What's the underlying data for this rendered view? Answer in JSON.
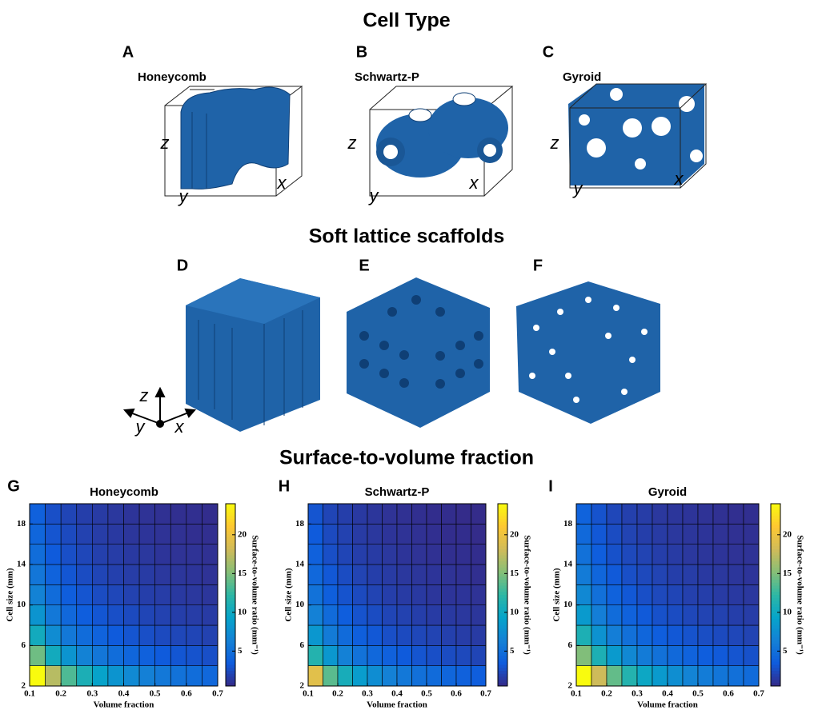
{
  "figure": {
    "title_top": "Cell Type",
    "title_mid": "Soft lattice scaffolds",
    "title_bottom": "Surface-to-volume fraction",
    "cells": [
      {
        "letter": "A",
        "name": "Honeycomb",
        "z": "z",
        "y": "y",
        "x": "x"
      },
      {
        "letter": "B",
        "name": "Schwartz-P",
        "z": "z",
        "y": "y",
        "x": "x"
      },
      {
        "letter": "C",
        "name": "Gyroid",
        "z": "z",
        "y": "y",
        "x": "x"
      }
    ],
    "scaffolds": [
      "D",
      "E",
      "F"
    ],
    "triad": {
      "z": "z",
      "y": "y",
      "x": "x"
    }
  },
  "chart_data": [
    {
      "type": "heatmap",
      "panel": "G",
      "title": "Honeycomb",
      "xlabel": "Volume fraction",
      "ylabel": "Cell size (mm)",
      "colorbar_label": "Surface-to-volume ratio (mm⁻¹)",
      "x": [
        0.125,
        0.175,
        0.225,
        0.275,
        0.325,
        0.375,
        0.425,
        0.475,
        0.525,
        0.575,
        0.625,
        0.675
      ],
      "y": [
        3,
        5,
        7,
        9,
        11,
        13,
        15,
        17,
        19
      ],
      "z": [
        [
          24,
          17.1,
          13.3,
          10.9,
          9.2,
          8,
          7.1,
          6.3,
          5.7,
          5.2,
          4.8,
          4.4
        ],
        [
          14.4,
          10.3,
          8,
          6.5,
          5.5,
          4.8,
          4.2,
          3.8,
          3.4,
          3.1,
          2.9,
          2.7
        ],
        [
          10.3,
          7.3,
          5.7,
          4.7,
          4,
          3.4,
          3,
          2.7,
          2.4,
          2.2,
          2.1,
          1.9
        ],
        [
          8,
          5.7,
          4.4,
          3.6,
          3.1,
          2.7,
          2.4,
          2.1,
          1.9,
          1.7,
          1.6,
          1.5
        ],
        [
          6.5,
          4.7,
          3.6,
          3,
          2.5,
          2.2,
          1.9,
          1.7,
          1.6,
          1.4,
          1.3,
          1.2
        ],
        [
          5.5,
          4,
          3.1,
          2.5,
          2.1,
          1.8,
          1.6,
          1.5,
          1.3,
          1.2,
          1.1,
          1
        ],
        [
          4.8,
          3.4,
          2.7,
          2.2,
          1.8,
          1.6,
          1.4,
          1.3,
          1.1,
          1,
          1,
          0.9
        ],
        [
          4.2,
          3,
          2.4,
          1.9,
          1.6,
          1.4,
          1.2,
          1.1,
          1,
          0.9,
          0.8,
          0.8
        ],
        [
          3.8,
          2.7,
          2.1,
          1.7,
          1.5,
          1.3,
          1.1,
          1,
          0.9,
          0.8,
          0.8,
          0.7
        ]
      ],
      "xlim": [
        0.1,
        0.7
      ],
      "ylim": [
        2,
        20
      ],
      "xticks": [
        0.1,
        0.2,
        0.3,
        0.4,
        0.5,
        0.6,
        0.7
      ],
      "yticks": [
        2,
        6,
        10,
        14,
        18
      ],
      "clim": [
        0.5,
        24
      ],
      "cticks": [
        5,
        10,
        15,
        20
      ],
      "colormap": [
        "#352a87",
        "#0f5cdd",
        "#1481d6",
        "#06a4ca",
        "#2eb7a4",
        "#87bf77",
        "#d1bb59",
        "#fec832",
        "#f9fb0e"
      ]
    },
    {
      "type": "heatmap",
      "panel": "H",
      "title": "Schwartz-P",
      "xlabel": "Volume fraction",
      "ylabel": "Cell size (mm)",
      "colorbar_label": "Surface-to-volume ratio (mm⁻¹)",
      "x": [
        0.125,
        0.175,
        0.225,
        0.275,
        0.325,
        0.375,
        0.425,
        0.475,
        0.525,
        0.575,
        0.625,
        0.675
      ],
      "y": [
        3,
        5,
        7,
        9,
        11,
        13,
        15,
        17,
        19
      ],
      "z": [
        [
          19.2,
          13.7,
          10.6,
          8.7,
          7.4,
          6.4,
          5.7,
          5,
          4.6,
          4.2,
          3.8,
          3.6
        ],
        [
          11.5,
          8.2,
          6.4,
          5.2,
          4.4,
          3.8,
          3.4,
          3,
          2.7,
          2.5,
          2.3,
          2.1
        ],
        [
          8.2,
          5.9,
          4.6,
          3.7,
          3.2,
          2.7,
          2.4,
          2.2,
          2,
          1.8,
          1.6,
          1.5
        ],
        [
          6.4,
          4.6,
          3.6,
          2.9,
          2.5,
          2.1,
          1.9,
          1.7,
          1.5,
          1.4,
          1.3,
          1.2
        ],
        [
          5.2,
          3.7,
          2.9,
          2.4,
          2,
          1.7,
          1.5,
          1.4,
          1.2,
          1.1,
          1.1,
          1
        ],
        [
          4.4,
          3.2,
          2.5,
          2,
          1.7,
          1.5,
          1.3,
          1.2,
          1.1,
          1,
          0.9,
          0.8
        ],
        [
          3.8,
          2.7,
          2.1,
          1.7,
          1.5,
          1.3,
          1.1,
          1,
          0.9,
          0.8,
          0.8,
          0.7
        ],
        [
          3.4,
          2.4,
          1.9,
          1.5,
          1.3,
          1.1,
          1,
          0.9,
          0.8,
          0.7,
          0.7,
          0.6
        ],
        [
          3,
          2.1,
          1.7,
          1.4,
          1.2,
          1,
          0.9,
          0.8,
          0.7,
          0.7,
          0.6,
          0.6
        ]
      ],
      "xlim": [
        0.1,
        0.7
      ],
      "ylim": [
        2,
        20
      ],
      "xticks": [
        0.1,
        0.2,
        0.3,
        0.4,
        0.5,
        0.6,
        0.7
      ],
      "yticks": [
        2,
        6,
        10,
        14,
        18
      ],
      "clim": [
        0.5,
        24
      ],
      "cticks": [
        5,
        10,
        15,
        20
      ],
      "colormap": [
        "#352a87",
        "#0f5cdd",
        "#1481d6",
        "#06a4ca",
        "#2eb7a4",
        "#87bf77",
        "#d1bb59",
        "#fec832",
        "#f9fb0e"
      ]
    },
    {
      "type": "heatmap",
      "panel": "I",
      "title": "Gyroid",
      "xlabel": "Volume fraction",
      "ylabel": "Cell size (mm)",
      "colorbar_label": "Surface-to-volume ratio (mm⁻¹)",
      "x": [
        0.125,
        0.175,
        0.225,
        0.275,
        0.325,
        0.375,
        0.425,
        0.475,
        0.525,
        0.575,
        0.625,
        0.675
      ],
      "y": [
        3,
        5,
        7,
        9,
        11,
        13,
        15,
        17,
        19
      ],
      "z": [
        [
          24,
          18,
          14,
          11.5,
          9.8,
          8.5,
          7.5,
          6.6,
          6,
          5.4,
          5,
          4.6
        ],
        [
          15,
          11,
          8.5,
          7,
          5.9,
          5.1,
          4.5,
          4,
          3.6,
          3.3,
          3,
          2.8
        ],
        [
          11,
          7.8,
          6.1,
          5,
          4.2,
          3.6,
          3.2,
          2.9,
          2.6,
          2.4,
          2.2,
          2
        ],
        [
          8.5,
          6.1,
          4.7,
          3.9,
          3.3,
          2.8,
          2.5,
          2.2,
          2,
          1.9,
          1.7,
          1.6
        ],
        [
          7,
          5,
          3.9,
          3.2,
          2.7,
          2.3,
          2.1,
          1.8,
          1.7,
          1.5,
          1.4,
          1.3
        ],
        [
          5.9,
          4.2,
          3.3,
          2.7,
          2.3,
          2,
          1.7,
          1.6,
          1.4,
          1.3,
          1.2,
          1.1
        ],
        [
          5.1,
          3.6,
          2.8,
          2.3,
          2,
          1.7,
          1.5,
          1.3,
          1.2,
          1.1,
          1,
          1
        ],
        [
          4.5,
          3.2,
          2.5,
          2,
          1.7,
          1.5,
          1.3,
          1.2,
          1.1,
          1,
          0.9,
          0.9
        ],
        [
          4,
          2.9,
          2.2,
          1.8,
          1.6,
          1.3,
          1.2,
          1.1,
          1,
          0.9,
          0.8,
          0.8
        ]
      ],
      "xlim": [
        0.1,
        0.7
      ],
      "ylim": [
        2,
        20
      ],
      "xticks": [
        0.1,
        0.2,
        0.3,
        0.4,
        0.5,
        0.6,
        0.7
      ],
      "yticks": [
        2,
        6,
        10,
        14,
        18
      ],
      "clim": [
        0.5,
        24
      ],
      "cticks": [
        5,
        10,
        15,
        20
      ],
      "colormap": [
        "#352a87",
        "#0f5cdd",
        "#1481d6",
        "#06a4ca",
        "#2eb7a4",
        "#87bf77",
        "#d1bb59",
        "#fec832",
        "#f9fb0e"
      ]
    }
  ]
}
